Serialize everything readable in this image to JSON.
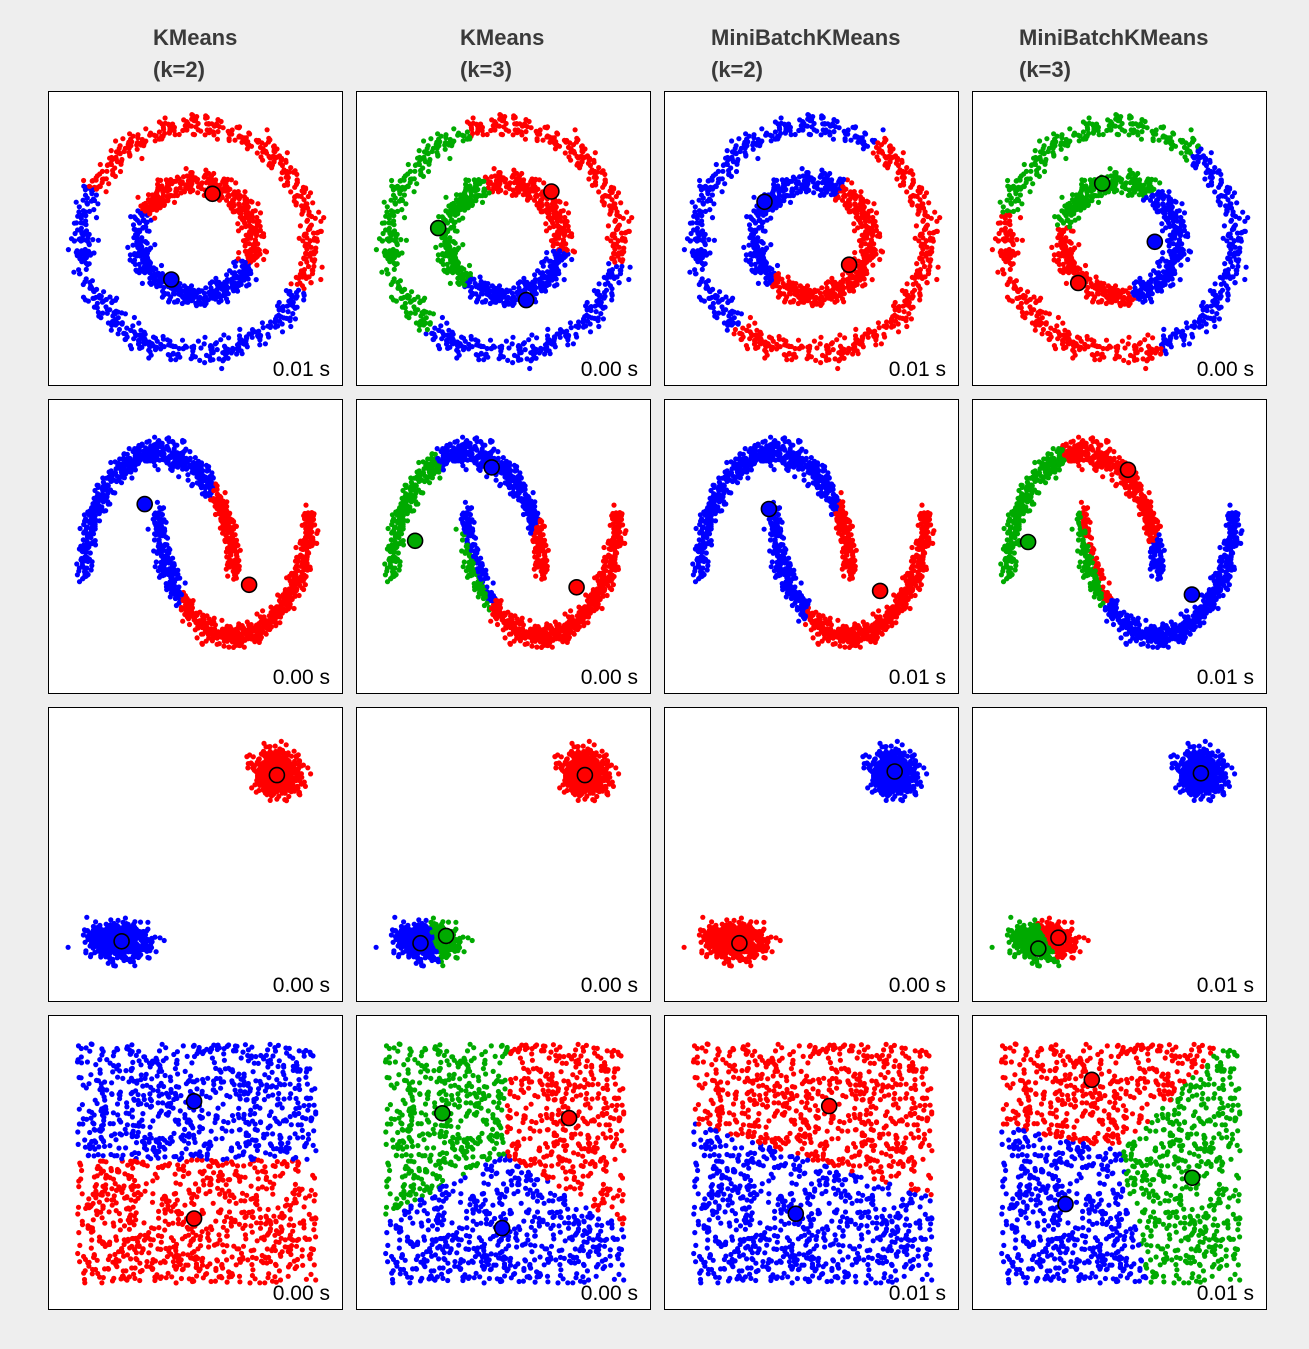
{
  "colors": {
    "red": "#ff0000",
    "green": "#00aa00",
    "blue": "#0000ff",
    "background": "#eeeeee"
  },
  "columns": [
    {
      "title": "KMeans",
      "subtitle": "(k=2)"
    },
    {
      "title": "KMeans",
      "subtitle": "(k=3)"
    },
    {
      "title": "MiniBatchKMeans",
      "subtitle": "(k=2)"
    },
    {
      "title": "MiniBatchKMeans",
      "subtitle": "(k=3)"
    }
  ],
  "chart_data": [
    {
      "type": "scatter",
      "dataset": "circles",
      "algorithm": "KMeans",
      "k": 2,
      "time_label": "0.01 s",
      "centers": [
        {
          "x": 0.14,
          "y": 0.4,
          "color": "red"
        },
        {
          "x": -0.22,
          "y": -0.35,
          "color": "blue"
        }
      ]
    },
    {
      "type": "scatter",
      "dataset": "circles",
      "algorithm": "KMeans",
      "k": 3,
      "time_label": "0.00 s",
      "centers": [
        {
          "x": 0.41,
          "y": 0.42,
          "color": "red"
        },
        {
          "x": -0.58,
          "y": 0.1,
          "color": "green"
        },
        {
          "x": 0.19,
          "y": -0.53,
          "color": "blue"
        }
      ]
    },
    {
      "type": "scatter",
      "dataset": "circles",
      "algorithm": "MiniBatchKMeans",
      "k": 2,
      "time_label": "0.01 s",
      "centers": [
        {
          "x": 0.32,
          "y": -0.22,
          "color": "red"
        },
        {
          "x": -0.42,
          "y": 0.33,
          "color": "blue"
        }
      ]
    },
    {
      "type": "scatter",
      "dataset": "circles",
      "algorithm": "MiniBatchKMeans",
      "k": 3,
      "time_label": "0.00 s",
      "centers": [
        {
          "x": -0.37,
          "y": -0.38,
          "color": "red"
        },
        {
          "x": -0.16,
          "y": 0.49,
          "color": "green"
        },
        {
          "x": 0.3,
          "y": -0.02,
          "color": "blue"
        }
      ]
    },
    {
      "type": "scatter",
      "dataset": "moons",
      "algorithm": "KMeans",
      "k": 2,
      "time_label": "0.00 s",
      "centers": [
        {
          "x": 1.2,
          "y": -0.08,
          "color": "red"
        },
        {
          "x": -0.19,
          "y": 0.58,
          "color": "blue"
        }
      ]
    },
    {
      "type": "scatter",
      "dataset": "moons",
      "algorithm": "KMeans",
      "k": 3,
      "time_label": "0.00 s",
      "centers": [
        {
          "x": 1.46,
          "y": -0.1,
          "color": "red"
        },
        {
          "x": -0.69,
          "y": 0.28,
          "color": "green"
        },
        {
          "x": 0.33,
          "y": 0.88,
          "color": "blue"
        }
      ]
    },
    {
      "type": "scatter",
      "dataset": "moons",
      "algorithm": "MiniBatchKMeans",
      "k": 2,
      "time_label": "0.01 s",
      "centers": [
        {
          "x": 1.4,
          "y": -0.13,
          "color": "red"
        },
        {
          "x": -0.08,
          "y": 0.54,
          "color": "blue"
        }
      ]
    },
    {
      "type": "scatter",
      "dataset": "moons",
      "algorithm": "MiniBatchKMeans",
      "k": 3,
      "time_label": "0.01 s",
      "centers": [
        {
          "x": 0.6,
          "y": 0.86,
          "color": "red"
        },
        {
          "x": -0.73,
          "y": 0.27,
          "color": "green"
        },
        {
          "x": 1.45,
          "y": -0.16,
          "color": "blue"
        }
      ]
    },
    {
      "type": "scatter",
      "dataset": "blobs",
      "algorithm": "KMeans",
      "k": 2,
      "time_label": "0.00 s",
      "centers": [
        {
          "x": 4.4,
          "y": 4.4,
          "color": "red"
        },
        {
          "x": -4.1,
          "y": -4.7,
          "color": "blue"
        }
      ]
    },
    {
      "type": "scatter",
      "dataset": "blobs",
      "algorithm": "KMeans",
      "k": 3,
      "time_label": "0.00 s",
      "centers": [
        {
          "x": 4.4,
          "y": 4.4,
          "color": "red"
        },
        {
          "x": -3.2,
          "y": -4.4,
          "color": "green"
        },
        {
          "x": -4.6,
          "y": -4.8,
          "color": "blue"
        }
      ]
    },
    {
      "type": "scatter",
      "dataset": "blobs",
      "algorithm": "MiniBatchKMeans",
      "k": 2,
      "time_label": "0.00 s",
      "centers": [
        {
          "x": -4.0,
          "y": -4.8,
          "color": "red"
        },
        {
          "x": 4.5,
          "y": 4.6,
          "color": "blue"
        }
      ]
    },
    {
      "type": "scatter",
      "dataset": "blobs",
      "algorithm": "MiniBatchKMeans",
      "k": 3,
      "time_label": "0.01 s",
      "centers": [
        {
          "x": -3.4,
          "y": -4.5,
          "color": "red"
        },
        {
          "x": -4.5,
          "y": -5.1,
          "color": "green"
        },
        {
          "x": 4.4,
          "y": 4.5,
          "color": "blue"
        }
      ]
    },
    {
      "type": "scatter",
      "dataset": "uniform",
      "algorithm": "KMeans",
      "k": 2,
      "time_label": "0.00 s",
      "centers": [
        {
          "x": 0.49,
          "y": 0.27,
          "color": "red"
        },
        {
          "x": 0.49,
          "y": 0.76,
          "color": "blue"
        }
      ]
    },
    {
      "type": "scatter",
      "dataset": "uniform",
      "algorithm": "KMeans",
      "k": 3,
      "time_label": "0.00 s",
      "centers": [
        {
          "x": 0.77,
          "y": 0.69,
          "color": "red"
        },
        {
          "x": 0.24,
          "y": 0.71,
          "color": "green"
        },
        {
          "x": 0.49,
          "y": 0.23,
          "color": "blue"
        }
      ]
    },
    {
      "type": "scatter",
      "dataset": "uniform",
      "algorithm": "MiniBatchKMeans",
      "k": 2,
      "time_label": "0.01 s",
      "centers": [
        {
          "x": 0.57,
          "y": 0.74,
          "color": "red"
        },
        {
          "x": 0.43,
          "y": 0.29,
          "color": "blue"
        }
      ]
    },
    {
      "type": "scatter",
      "dataset": "uniform",
      "algorithm": "MiniBatchKMeans",
      "k": 3,
      "time_label": "0.01 s",
      "centers": [
        {
          "x": 0.38,
          "y": 0.85,
          "color": "red"
        },
        {
          "x": 0.8,
          "y": 0.44,
          "color": "green"
        },
        {
          "x": 0.27,
          "y": 0.33,
          "color": "blue"
        }
      ]
    }
  ]
}
